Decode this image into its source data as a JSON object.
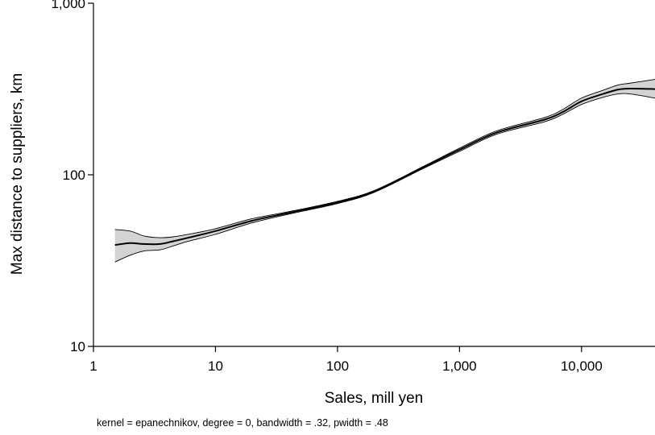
{
  "chart_data": {
    "type": "line",
    "title": "",
    "xlabel": "Sales, mill yen",
    "ylabel": "Max distance to suppliers, km",
    "note": "kernel = epanechnikov, degree = 0, bandwidth = .32, pwidth = .48",
    "x_scale": "log",
    "y_scale": "log",
    "xlim": [
      1,
      40000
    ],
    "ylim": [
      10,
      1000
    ],
    "x_ticks": [
      {
        "value": 1,
        "label": "1"
      },
      {
        "value": 10,
        "label": "10"
      },
      {
        "value": 100,
        "label": "100"
      },
      {
        "value": 1000,
        "label": "1,000"
      },
      {
        "value": 10000,
        "label": "10,000"
      }
    ],
    "y_ticks": [
      {
        "value": 10,
        "label": "10"
      },
      {
        "value": 100,
        "label": "100"
      },
      {
        "value": 1000,
        "label": "1,000"
      }
    ],
    "grid": false,
    "legend": "none",
    "series": [
      {
        "name": "",
        "color": "#000000",
        "band_color": "#d3d3d3",
        "points": [
          {
            "x": 1.5,
            "y": 39,
            "lo": 31,
            "hi": 48
          },
          {
            "x": 2,
            "y": 40,
            "lo": 34,
            "hi": 47
          },
          {
            "x": 2.6,
            "y": 39.5,
            "lo": 36,
            "hi": 44
          },
          {
            "x": 3.5,
            "y": 39.5,
            "lo": 36.5,
            "hi": 43
          },
          {
            "x": 4.5,
            "y": 41,
            "lo": 38.5,
            "hi": 43.5
          },
          {
            "x": 6,
            "y": 43,
            "lo": 41,
            "hi": 45
          },
          {
            "x": 10,
            "y": 47,
            "lo": 45,
            "hi": 48.5
          },
          {
            "x": 20,
            "y": 54,
            "lo": 52.5,
            "hi": 55.5
          },
          {
            "x": 40,
            "y": 60,
            "lo": 59,
            "hi": 61
          },
          {
            "x": 100,
            "y": 69,
            "lo": 68,
            "hi": 70
          },
          {
            "x": 200,
            "y": 80,
            "lo": 79,
            "hi": 81
          },
          {
            "x": 500,
            "y": 110,
            "lo": 108.5,
            "hi": 111.5
          },
          {
            "x": 1000,
            "y": 140,
            "lo": 137,
            "hi": 143
          },
          {
            "x": 2000,
            "y": 176,
            "lo": 172,
            "hi": 180
          },
          {
            "x": 5000,
            "y": 210,
            "lo": 204,
            "hi": 216
          },
          {
            "x": 7000,
            "y": 232,
            "lo": 225,
            "hi": 240
          },
          {
            "x": 10000,
            "y": 268,
            "lo": 257,
            "hi": 280
          },
          {
            "x": 15000,
            "y": 296,
            "lo": 283,
            "hi": 311
          },
          {
            "x": 20000,
            "y": 314,
            "lo": 296,
            "hi": 334
          },
          {
            "x": 25000,
            "y": 318,
            "lo": 296,
            "hi": 342
          },
          {
            "x": 40000,
            "y": 316,
            "lo": 280,
            "hi": 360
          }
        ]
      }
    ]
  }
}
